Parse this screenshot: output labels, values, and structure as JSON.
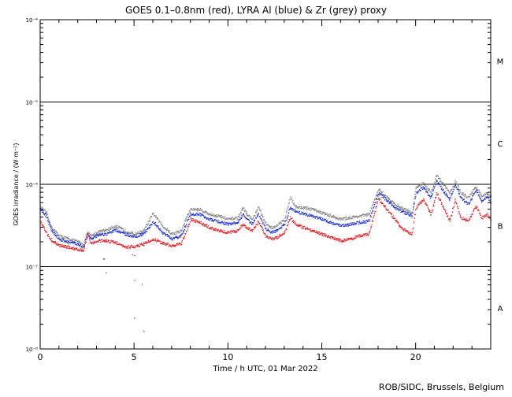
{
  "chart_data": {
    "type": "scatter",
    "title": "GOES 0.1–0.8nm (red), LYRA Al (blue) & Zr (grey) proxy",
    "xlabel": "Time / h UTC, 01 Mar 2022",
    "ylabel": "GOES irradiance / (W m⁻²)",
    "xlim": [
      0,
      24
    ],
    "ylim_log10": [
      -8,
      -4
    ],
    "x_ticks": [
      0,
      5,
      10,
      15,
      20
    ],
    "x_tick_labels": [
      "0",
      "5",
      "10",
      "15",
      "20"
    ],
    "y_ticks_log10": [
      -8,
      -7,
      -6,
      -5,
      -4
    ],
    "y_tick_labels": [
      "10⁻⁸",
      "10⁻⁷",
      "10⁻⁶",
      "10⁻⁵",
      "10⁻⁴"
    ],
    "reference_lines_log10": [
      -7,
      -6,
      -5
    ],
    "flare_classes": [
      {
        "label": "A",
        "log_center": -7.5
      },
      {
        "label": "B",
        "log_center": -6.5
      },
      {
        "label": "C",
        "log_center": -5.5
      },
      {
        "label": "M",
        "log_center": -4.5
      }
    ],
    "series": [
      {
        "name": "GOES 0.1–0.8nm",
        "color": "#e8141b",
        "x": [
          0,
          0.3,
          0.6,
          1.0,
          1.5,
          2.0,
          2.3,
          2.5,
          2.7,
          3.0,
          3.5,
          4.0,
          4.5,
          5.0,
          5.5,
          6.0,
          6.5,
          7.0,
          7.5,
          7.8,
          8.0,
          8.5,
          9.0,
          9.5,
          10.0,
          10.5,
          10.8,
          11.0,
          11.3,
          11.6,
          12.0,
          12.3,
          12.6,
          13.0,
          13.3,
          13.6,
          14.0,
          14.5,
          15.0,
          15.5,
          16.0,
          16.5,
          17.0,
          17.5,
          18.0,
          18.4,
          18.8,
          19.2,
          19.6,
          19.8,
          20.0,
          20.4,
          20.8,
          21.1,
          21.4,
          21.8,
          22.1,
          22.4,
          22.8,
          23.2,
          23.5,
          23.8,
          24.0
        ],
        "log_values": [
          -6.45,
          -6.58,
          -6.68,
          -6.74,
          -6.76,
          -6.79,
          -6.8,
          -6.6,
          -6.72,
          -6.68,
          -6.68,
          -6.7,
          -6.76,
          -6.75,
          -6.72,
          -6.66,
          -6.71,
          -6.74,
          -6.72,
          -6.55,
          -6.42,
          -6.46,
          -6.52,
          -6.56,
          -6.58,
          -6.56,
          -6.48,
          -6.52,
          -6.56,
          -6.45,
          -6.62,
          -6.66,
          -6.64,
          -6.58,
          -6.4,
          -6.48,
          -6.52,
          -6.56,
          -6.6,
          -6.64,
          -6.68,
          -6.66,
          -6.62,
          -6.6,
          -6.17,
          -6.28,
          -6.4,
          -6.52,
          -6.58,
          -6.6,
          -6.28,
          -6.18,
          -6.36,
          -6.1,
          -6.24,
          -6.44,
          -6.18,
          -6.4,
          -6.44,
          -6.26,
          -6.4,
          -6.36,
          -6.42
        ],
        "scattered_points": [
          [
            3.5,
            -7.07
          ],
          [
            5.0,
            -7.16
          ],
          [
            5.0,
            -7.62
          ],
          [
            5.4,
            -7.21
          ],
          [
            5.5,
            -7.78
          ],
          [
            4.9,
            -6.85
          ],
          [
            3.4,
            -6.9
          ]
        ]
      },
      {
        "name": "LYRA Al proxy",
        "color": "#1a2be0",
        "x": [
          0,
          0.3,
          0.6,
          1.0,
          1.5,
          2.0,
          2.3,
          2.5,
          2.7,
          3.0,
          3.5,
          4.0,
          4.5,
          5.0,
          5.5,
          6.0,
          6.5,
          7.0,
          7.5,
          7.8,
          8.0,
          8.5,
          9.0,
          9.5,
          10.0,
          10.5,
          10.8,
          11.0,
          11.3,
          11.6,
          12.0,
          12.3,
          12.6,
          13.0,
          13.3,
          13.6,
          14.0,
          14.5,
          15.0,
          15.5,
          16.0,
          16.5,
          17.0,
          17.5,
          18.0,
          18.4,
          18.8,
          19.2,
          19.6,
          19.8,
          20.0,
          20.4,
          20.8,
          21.1,
          21.4,
          21.8,
          22.1,
          22.4,
          22.8,
          23.2,
          23.5,
          23.8,
          24.0
        ],
        "log_values": [
          -6.3,
          -6.38,
          -6.56,
          -6.66,
          -6.7,
          -6.72,
          -6.76,
          -6.6,
          -6.66,
          -6.62,
          -6.6,
          -6.55,
          -6.6,
          -6.63,
          -6.6,
          -6.45,
          -6.58,
          -6.66,
          -6.62,
          -6.45,
          -6.36,
          -6.36,
          -6.42,
          -6.45,
          -6.48,
          -6.46,
          -6.36,
          -6.42,
          -6.48,
          -6.35,
          -6.54,
          -6.58,
          -6.56,
          -6.48,
          -6.28,
          -6.33,
          -6.35,
          -6.38,
          -6.42,
          -6.46,
          -6.5,
          -6.48,
          -6.46,
          -6.44,
          -6.1,
          -6.18,
          -6.26,
          -6.32,
          -6.36,
          -6.38,
          -6.1,
          -6.03,
          -6.16,
          -5.94,
          -6.06,
          -6.18,
          -6.0,
          -6.16,
          -6.24,
          -6.06,
          -6.2,
          -6.14,
          -6.22
        ],
        "scattered_points": [
          [
            3.35,
            -6.9
          ],
          [
            5.0,
            -6.86
          ],
          [
            5.5,
            -6.74
          ]
        ]
      },
      {
        "name": "LYRA Zr proxy",
        "color": "#808080",
        "x": [
          0,
          0.3,
          0.6,
          1.0,
          1.5,
          2.0,
          2.3,
          2.5,
          2.7,
          3.0,
          3.5,
          4.0,
          4.5,
          5.0,
          5.5,
          6.0,
          6.5,
          7.0,
          7.5,
          7.8,
          8.0,
          8.5,
          9.0,
          9.5,
          10.0,
          10.5,
          10.8,
          11.0,
          11.3,
          11.6,
          12.0,
          12.3,
          12.6,
          13.0,
          13.3,
          13.6,
          14.0,
          14.5,
          15.0,
          15.5,
          16.0,
          16.5,
          17.0,
          17.5,
          18.0,
          18.4,
          18.8,
          19.2,
          19.6,
          19.8,
          20.0,
          20.4,
          20.8,
          21.1,
          21.4,
          21.8,
          22.1,
          22.4,
          22.8,
          23.2,
          23.5,
          23.8,
          24.0
        ],
        "log_values": [
          -6.27,
          -6.34,
          -6.52,
          -6.62,
          -6.66,
          -6.69,
          -6.73,
          -6.57,
          -6.62,
          -6.58,
          -6.55,
          -6.5,
          -6.56,
          -6.6,
          -6.56,
          -6.35,
          -6.5,
          -6.6,
          -6.56,
          -6.38,
          -6.3,
          -6.3,
          -6.36,
          -6.38,
          -6.42,
          -6.4,
          -6.28,
          -6.36,
          -6.42,
          -6.27,
          -6.48,
          -6.52,
          -6.5,
          -6.42,
          -6.15,
          -6.27,
          -6.28,
          -6.3,
          -6.34,
          -6.38,
          -6.42,
          -6.4,
          -6.38,
          -6.36,
          -6.06,
          -6.14,
          -6.22,
          -6.28,
          -6.32,
          -6.35,
          -6.03,
          -5.98,
          -6.1,
          -5.88,
          -5.98,
          -6.1,
          -5.96,
          -6.1,
          -6.16,
          -6.02,
          -6.14,
          -6.1,
          -6.14
        ],
        "scattered_points": []
      }
    ],
    "footer": "ROB/SIDC, Brussels, Belgium"
  }
}
